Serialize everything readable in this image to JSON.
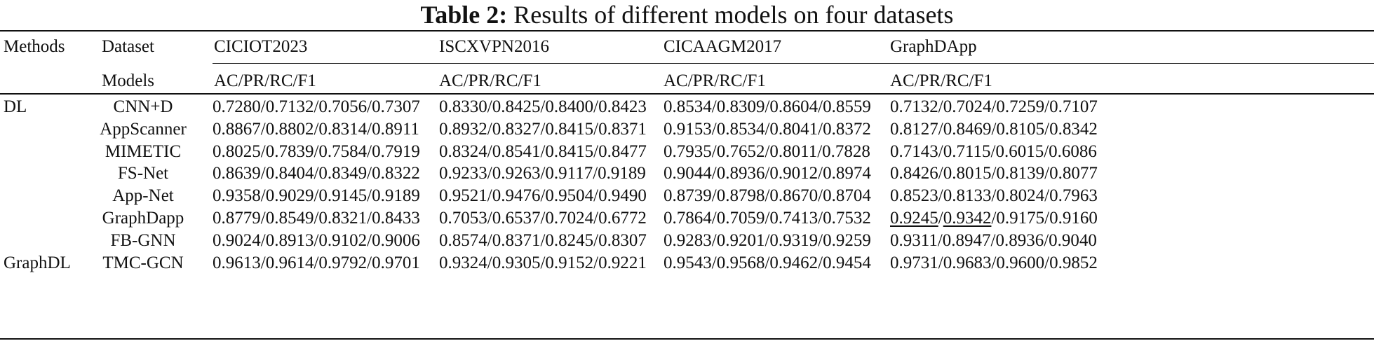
{
  "caption": {
    "label": "Table 2:",
    "text": "Results of different models on four datasets"
  },
  "header": {
    "methods": "Methods",
    "dataset": "Dataset",
    "models": "Models",
    "datasets": [
      "CICIOT2023",
      "ISCXVPN2016",
      "CICAAGM2017",
      "GraphDApp"
    ],
    "metric_label": "AC/PR/RC/F1"
  },
  "groups": [
    {
      "name": "DL"
    },
    {
      "name": "GraphDL"
    }
  ],
  "rows": [
    {
      "group": "DL",
      "model": "CNN+D",
      "values": [
        "0.7280/0.7132/0.7056/0.7307",
        "0.8330/0.8425/0.8400/0.8423",
        "0.8534/0.8309/0.8604/0.8559",
        "0.7132/0.7024/0.7259/0.7107"
      ]
    },
    {
      "group": "DL",
      "model": "AppScanner",
      "values": [
        "0.8867/0.8802/0.8314/0.8911",
        "0.8932/0.8327/0.8415/0.8371",
        "0.9153/0.8534/0.8041/0.8372",
        "0.8127/0.8469/0.8105/0.8342"
      ]
    },
    {
      "group": "DL",
      "model": "MIMETIC",
      "values": [
        "0.8025/0.7839/0.7584/0.7919",
        "0.8324/0.8541/0.8415/0.8477",
        "0.7935/0.7652/0.8011/0.7828",
        "0.7143/0.7115/0.6015/0.6086"
      ]
    },
    {
      "group": "DL",
      "model": "FS-Net",
      "values": [
        "0.8639/0.8404/0.8349/0.8322",
        "0.9233/0.9263/0.9117/0.9189",
        "0.9044/0.8936/0.9012/0.8974",
        "0.8426/0.8015/0.8139/0.8077"
      ]
    },
    {
      "group": "DL",
      "model": "App-Net",
      "values": [
        "0.9358/0.9029/0.9145/0.9189",
        "0.9521/0.9476/0.9504/0.9490",
        "0.8739/0.8798/0.8670/0.8704",
        "0.8523/0.8133/0.8024/0.7963"
      ]
    },
    {
      "group": "GraphDL",
      "model": "GraphDapp",
      "values": [
        "0.8779/0.8549/0.8321/0.8433",
        "0.7053/0.6537/0.7024/0.6772",
        "0.7864/0.7059/0.7413/0.7532",
        "0.9245/0.9342/0.9175/0.9160"
      ]
    },
    {
      "group": "GraphDL",
      "model": "FB-GNN",
      "values": [
        "0.9024/0.8913/0.9102/0.9006",
        "0.8574/0.8371/0.8245/0.8307",
        "0.9283/0.9201/0.9319/0.9259",
        "0.9311/0.8947/0.8936/0.9040"
      ]
    },
    {
      "group": "GraphDL",
      "model": "TMC-GCN",
      "values": [
        "0.9613/0.9614/0.9792/0.9701",
        "0.9324/0.9305/0.9152/0.9221",
        "0.9543/0.9568/0.9462/0.9454",
        "0.9731/0.9683/0.9600/0.9852"
      ]
    }
  ],
  "underlined_cells": [
    {
      "row": 5,
      "col": 3,
      "parts": [
        0,
        1
      ]
    }
  ]
}
